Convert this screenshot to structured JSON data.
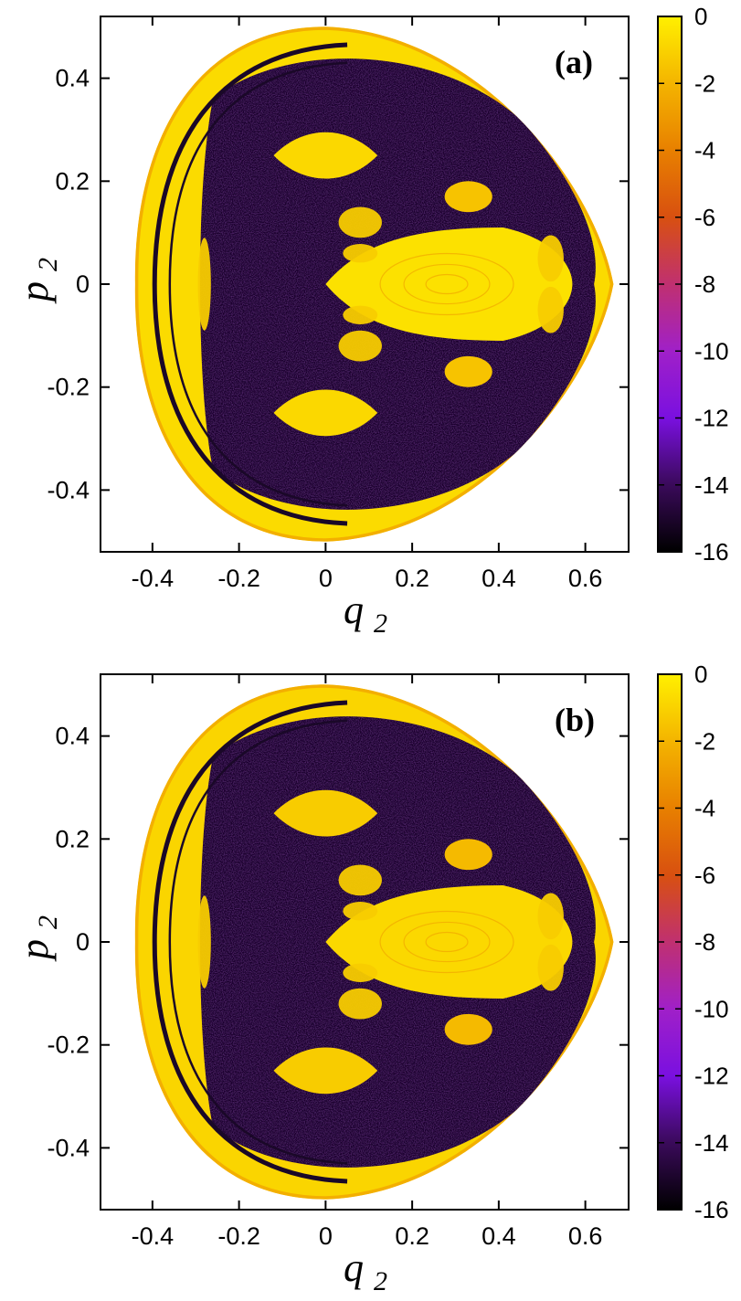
{
  "chart_data": [
    {
      "type": "heatmap",
      "panel_label": "(a)",
      "xlabel": "q",
      "xlabel_sub": "2",
      "ylabel": "p",
      "ylabel_sub": "2",
      "xlim": [
        -0.52,
        0.7
      ],
      "ylim": [
        -0.52,
        0.52
      ],
      "x_ticks": [
        -0.4,
        -0.2,
        0,
        0.2,
        0.4,
        0.6
      ],
      "x_tick_labels": [
        "-0.4",
        "-0.2",
        "0",
        "0.2",
        "0.4",
        "0.6"
      ],
      "y_ticks": [
        0.4,
        0.2,
        0,
        -0.2,
        -0.4
      ],
      "y_tick_labels": [
        "0.4",
        "0.2",
        "0",
        "-0.2",
        "-0.4"
      ],
      "colorbar": {
        "range": [
          -16,
          0
        ],
        "ticks": [
          0,
          -2,
          -4,
          -6,
          -8,
          -10,
          -12,
          -14,
          -16
        ],
        "tick_labels": [
          "0",
          "-2",
          "-4",
          "-6",
          "-8",
          "-10",
          "-12",
          "-14",
          "-16"
        ],
        "colors": [
          "#000000",
          "#3a0a5a",
          "#7a10e0",
          "#a020c8",
          "#c03070",
          "#d85010",
          "#e88000",
          "#f4b400",
          "#fff000"
        ]
      },
      "regions": [
        {
          "kind": "stable-island",
          "cx": 0.28,
          "cy": 0.0,
          "value": -0.5
        },
        {
          "kind": "stable-island",
          "cx": 0.0,
          "cy": 0.25,
          "value": -0.8
        },
        {
          "kind": "stable-island",
          "cx": 0.0,
          "cy": -0.25,
          "value": -0.8
        },
        {
          "kind": "stable-island",
          "cx": 0.33,
          "cy": 0.17,
          "value": -1.5
        },
        {
          "kind": "stable-island",
          "cx": 0.33,
          "cy": -0.17,
          "value": -1.5
        },
        {
          "kind": "outer-regular-band",
          "value": -0.7
        },
        {
          "kind": "chaotic-sea",
          "value": -15
        }
      ]
    },
    {
      "type": "heatmap",
      "panel_label": "(b)",
      "xlabel": "q",
      "xlabel_sub": "2",
      "ylabel": "p",
      "ylabel_sub": "2",
      "xlim": [
        -0.52,
        0.7
      ],
      "ylim": [
        -0.52,
        0.52
      ],
      "x_ticks": [
        -0.4,
        -0.2,
        0,
        0.2,
        0.4,
        0.6
      ],
      "x_tick_labels": [
        "-0.4",
        "-0.2",
        "0",
        "0.2",
        "0.4",
        "0.6"
      ],
      "y_ticks": [
        0.4,
        0.2,
        0,
        -0.2,
        -0.4
      ],
      "y_tick_labels": [
        "0.4",
        "0.2",
        "0",
        "-0.2",
        "-0.4"
      ],
      "colorbar": {
        "range": [
          -16,
          0
        ],
        "ticks": [
          0,
          -2,
          -4,
          -6,
          -8,
          -10,
          -12,
          -14,
          -16
        ],
        "tick_labels": [
          "0",
          "-2",
          "-4",
          "-6",
          "-8",
          "-10",
          "-12",
          "-14",
          "-16"
        ],
        "colors": [
          "#000000",
          "#3a0a5a",
          "#7a10e0",
          "#a020c8",
          "#c03070",
          "#d85010",
          "#e88000",
          "#f4b400",
          "#fff000"
        ]
      },
      "regions": [
        {
          "kind": "stable-island",
          "cx": 0.28,
          "cy": 0.0,
          "value": -0.8
        },
        {
          "kind": "stable-island",
          "cx": 0.0,
          "cy": 0.25,
          "value": -1.2
        },
        {
          "kind": "stable-island",
          "cx": 0.0,
          "cy": -0.25,
          "value": -1.2
        },
        {
          "kind": "stable-island",
          "cx": 0.33,
          "cy": 0.17,
          "value": -1.8
        },
        {
          "kind": "stable-island",
          "cx": 0.33,
          "cy": -0.17,
          "value": -1.8
        },
        {
          "kind": "outer-regular-band",
          "value": -0.9
        },
        {
          "kind": "chaotic-sea",
          "value": -15
        }
      ]
    }
  ]
}
